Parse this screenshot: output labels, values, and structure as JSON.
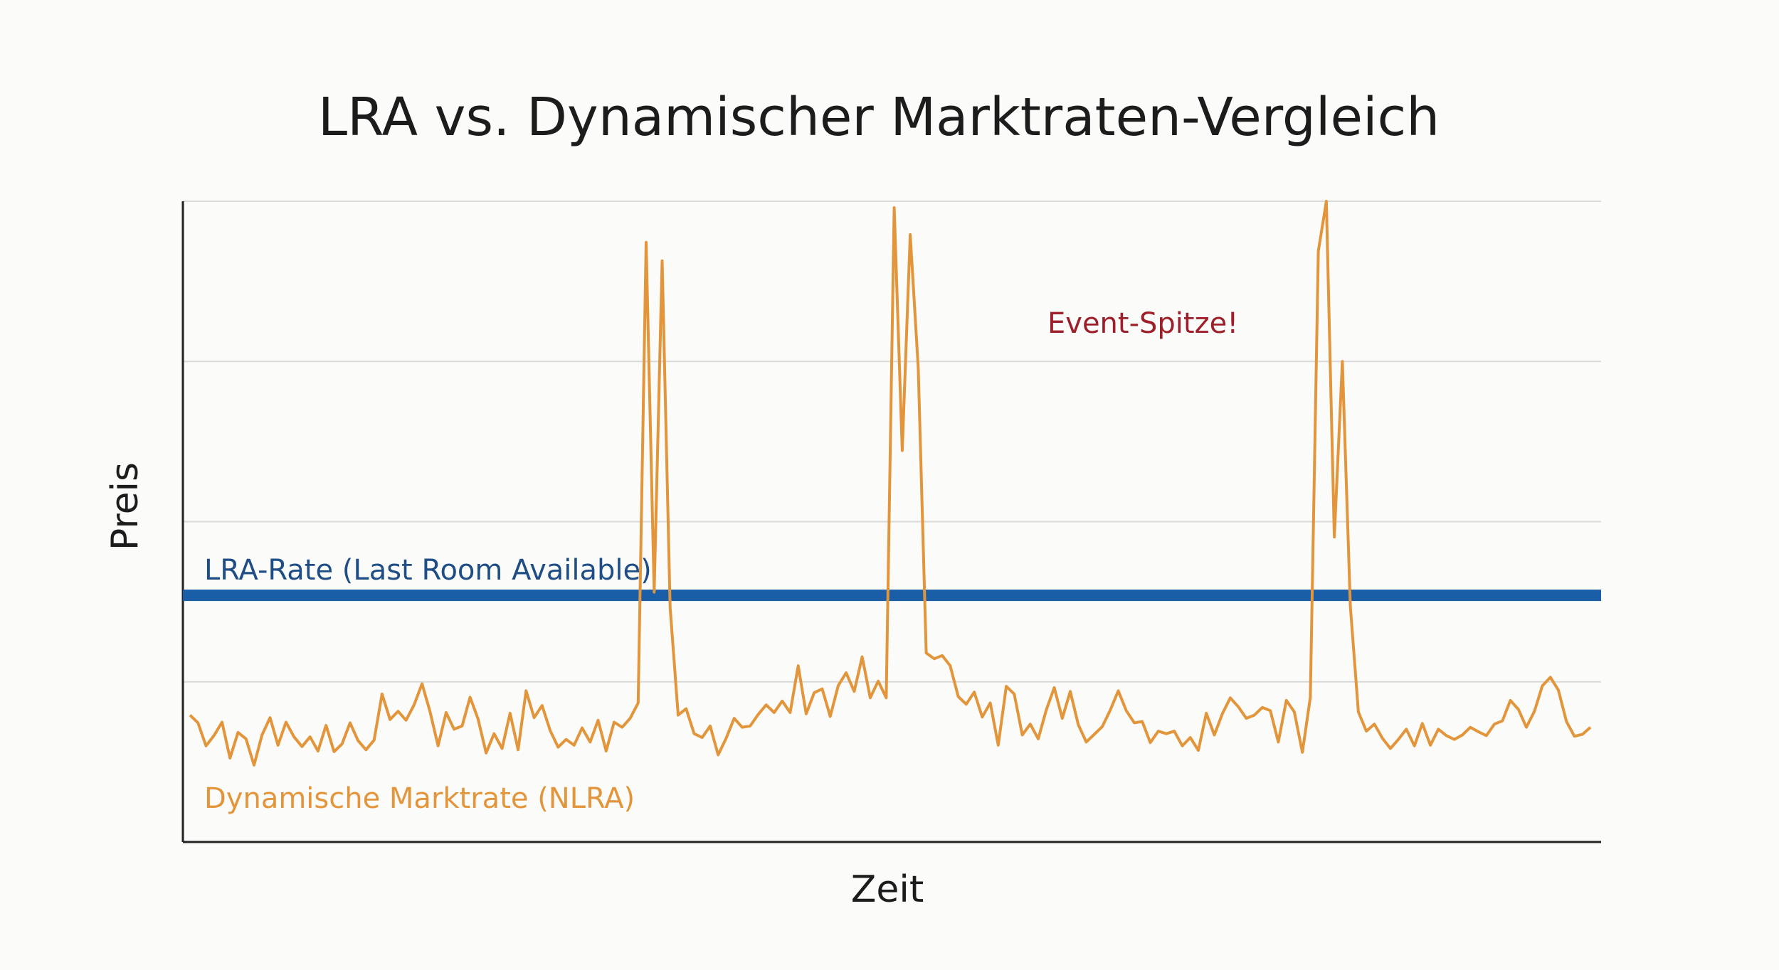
{
  "chart_data": {
    "type": "line",
    "title": "LRA vs. Dynamischer Marktraten-Vergleich",
    "xlabel": "Zeit",
    "ylabel": "Preis",
    "ylim": [
      0,
      100
    ],
    "grid": "horizontal",
    "legend": "none",
    "gridlines": [
      25,
      50,
      75,
      100
    ],
    "colors": {
      "lra": "#1a5ea8",
      "nlra": "#e2953a",
      "annotation": "#9c1f2a",
      "grid": "#d9d9d9",
      "axis": "#222222",
      "text": "#1c1c1c"
    },
    "series": [
      {
        "name": "LRA-Rate (Last Room Available)",
        "kind": "constant",
        "value": 38.5
      },
      {
        "name": "Dynamische Marktrate (NLRA)",
        "kind": "line",
        "values": [
          19.8,
          18.6,
          15.0,
          16.6,
          18.7,
          13.1,
          17.1,
          16.1,
          12.0,
          16.7,
          19.4,
          15.1,
          18.7,
          16.4,
          14.9,
          16.4,
          14.2,
          18.2,
          14.1,
          15.3,
          18.6,
          15.8,
          14.4,
          15.9,
          23.1,
          19.1,
          20.4,
          19.0,
          21.4,
          24.7,
          20.3,
          15.0,
          20.2,
          17.6,
          18.1,
          22.6,
          19.2,
          13.9,
          16.9,
          14.6,
          20.1,
          14.4,
          23.6,
          19.4,
          21.3,
          17.4,
          14.8,
          16.0,
          15.1,
          17.8,
          15.6,
          19.0,
          14.2,
          18.7,
          17.9,
          19.3,
          21.7,
          93.6,
          39.0,
          90.7,
          36.6,
          19.8,
          20.8,
          16.9,
          16.3,
          18.1,
          13.6,
          16.2,
          19.3,
          17.9,
          18.1,
          19.9,
          21.4,
          20.2,
          22.0,
          20.2,
          27.5,
          20.0,
          23.3,
          23.9,
          19.6,
          24.4,
          26.4,
          23.5,
          28.9,
          22.5,
          25.1,
          22.5,
          99.0,
          61.1,
          94.8,
          74.0,
          29.5,
          28.6,
          29.1,
          27.5,
          22.7,
          21.5,
          23.4,
          19.5,
          21.7,
          15.1,
          24.3,
          23.1,
          16.7,
          18.4,
          16.1,
          20.6,
          24.1,
          19.3,
          23.5,
          18.3,
          15.6,
          16.8,
          18.0,
          20.6,
          23.6,
          20.5,
          18.6,
          18.8,
          15.5,
          17.3,
          16.9,
          17.3,
          15.0,
          16.3,
          14.3,
          20.1,
          16.7,
          20.0,
          22.5,
          21.1,
          19.3,
          19.8,
          21.0,
          20.5,
          15.6,
          22.1,
          20.3,
          14.0,
          22.6,
          92.2,
          100.0,
          47.6,
          75.0,
          36.8,
          20.3,
          17.3,
          18.4,
          16.2,
          14.6,
          16.0,
          17.6,
          15.0,
          18.5,
          15.1,
          17.6,
          16.6,
          16.0,
          16.7,
          17.9,
          17.2,
          16.6,
          18.4,
          18.9,
          22.1,
          20.7,
          17.9,
          20.4,
          24.4,
          25.7,
          23.7,
          18.8,
          16.5,
          16.8,
          17.9
        ]
      }
    ],
    "annotations": [
      {
        "text": "Event-Spitze!"
      }
    ]
  }
}
